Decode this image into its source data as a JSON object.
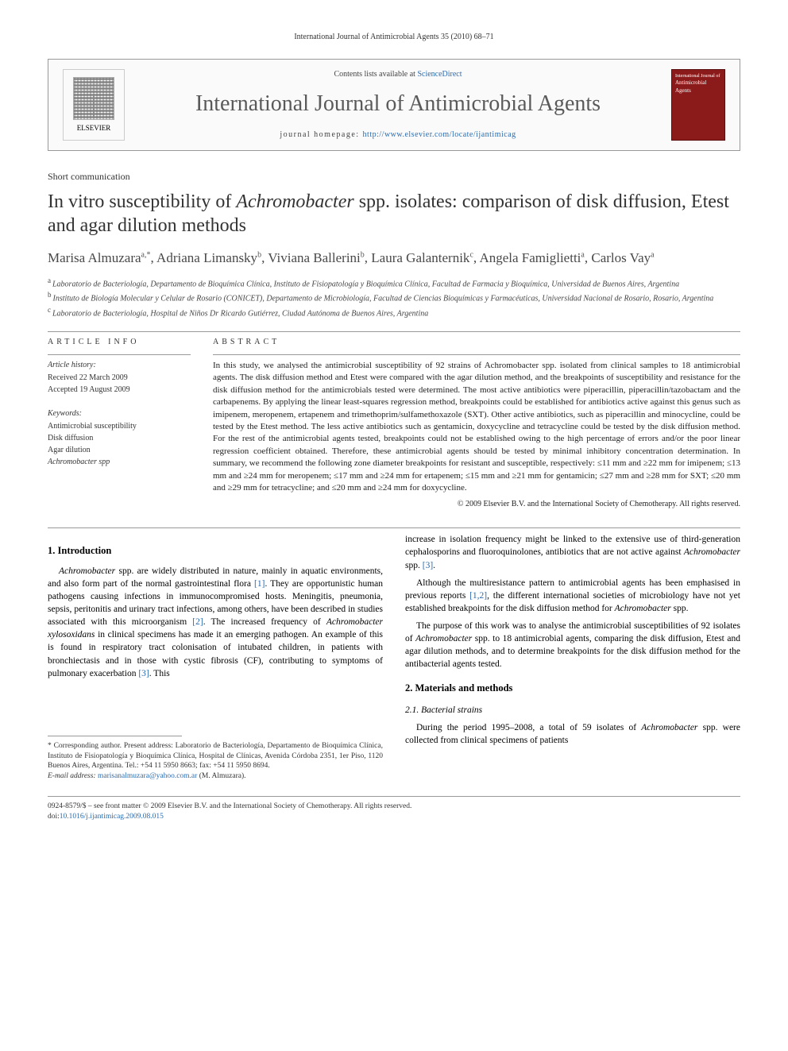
{
  "running_header": "International Journal of Antimicrobial Agents 35 (2010) 68–71",
  "journal_box": {
    "contents_prefix": "Contents lists available at ",
    "contents_link": "ScienceDirect",
    "journal_name": "International Journal of Antimicrobial Agents",
    "homepage_prefix": "journal homepage: ",
    "homepage_url": "http://www.elsevier.com/locate/ijantimicag",
    "publisher_logo_label": "ELSEVIER",
    "cover_text_top": "International Journal of",
    "cover_text_main": "Antimicrobial Agents"
  },
  "article_type": "Short communication",
  "title_html": "In vitro susceptibility of <em>Achromobacter</em> spp. isolates: comparison of disk diffusion, Etest and agar dilution methods",
  "authors_html": "Marisa Almuzara<sup>a,*</sup>, Adriana Limansky<sup>b</sup>, Viviana Ballerini<sup>b</sup>, Laura Galanternik<sup>c</sup>, Angela Famiglietti<sup>a</sup>, Carlos Vay<sup>a</sup>",
  "affiliations": [
    {
      "sup": "a",
      "text": "Laboratorio de Bacteriología, Departamento de Bioquímica Clínica, Instituto de Fisiopatología y Bioquímica Clínica, Facultad de Farmacia y Bioquímica, Universidad de Buenos Aires, Argentina"
    },
    {
      "sup": "b",
      "text": "Instituto de Biología Molecular y Celular de Rosario (CONICET), Departamento de Microbiología, Facultad de Ciencias Bioquímicas y Farmacéuticas, Universidad Nacional de Rosario, Rosario, Argentina"
    },
    {
      "sup": "c",
      "text": "Laboratorio de Bacteriología, Hospital de Niños Dr Ricardo Gutiérrez, Ciudad Autónoma de Buenos Aires, Argentina"
    }
  ],
  "info": {
    "head": "ARTICLE INFO",
    "history_head": "Article history:",
    "received": "Received 22 March 2009",
    "accepted": "Accepted 19 August 2009",
    "kw_head": "Keywords:",
    "keywords": [
      "Antimicrobial susceptibility",
      "Disk diffusion",
      "Agar dilution",
      "Achromobacter spp"
    ]
  },
  "abstract": {
    "head": "ABSTRACT",
    "text": "In this study, we analysed the antimicrobial susceptibility of 92 strains of Achromobacter spp. isolated from clinical samples to 18 antimicrobial agents. The disk diffusion method and Etest were compared with the agar dilution method, and the breakpoints of susceptibility and resistance for the disk diffusion method for the antimicrobials tested were determined. The most active antibiotics were piperacillin, piperacillin/tazobactam and the carbapenems. By applying the linear least-squares regression method, breakpoints could be established for antibiotics active against this genus such as imipenem, meropenem, ertapenem and trimethoprim/sulfamethoxazole (SXT). Other active antibiotics, such as piperacillin and minocycline, could be tested by the Etest method. The less active antibiotics such as gentamicin, doxycycline and tetracycline could be tested by the disk diffusion method. For the rest of the antimicrobial agents tested, breakpoints could not be established owing to the high percentage of errors and/or the poor linear regression coefficient obtained. Therefore, these antimicrobial agents should be tested by minimal inhibitory concentration determination. In summary, we recommend the following zone diameter breakpoints for resistant and susceptible, respectively: ≤11 mm and ≥22 mm for imipenem; ≤13 mm and ≥24 mm for meropenem; ≤17 mm and ≥24 mm for ertapenem; ≤15 mm and ≥21 mm for gentamicin; ≤27 mm and ≥28 mm for SXT; ≤20 mm and ≥29 mm for tetracycline; and ≤20 mm and ≥24 mm for doxycycline.",
    "copyright": "© 2009 Elsevier B.V. and the International Society of Chemotherapy. All rights reserved."
  },
  "body": {
    "h_intro": "1. Introduction",
    "p1_html": "<em>Achromobacter</em> spp. are widely distributed in nature, mainly in aquatic environments, and also form part of the normal gastrointestinal flora <span class=\"ref\">[1]</span>. They are opportunistic human pathogens causing infections in immunocompromised hosts. Meningitis, pneumonia, sepsis, peritonitis and urinary tract infections, among others, have been described in studies associated with this microorganism <span class=\"ref\">[2]</span>. The increased frequency of <em>Achromobacter xylosoxidans</em> in clinical specimens has made it an emerging pathogen. An example of this is found in respiratory tract colonisation of intubated children, in patients with bronchiectasis and in those with cystic fibrosis (CF), contributing to symptoms of pulmonary exacerbation <span class=\"ref\">[3]</span>. This",
    "p2_html": "increase in isolation frequency might be linked to the extensive use of third-generation cephalosporins and fluoroquinolones, antibiotics that are not active against <em>Achromobacter</em> spp. <span class=\"ref\">[3]</span>.",
    "p3_html": "Although the multiresistance pattern to antimicrobial agents has been emphasised in previous reports <span class=\"ref\">[1,2]</span>, the different international societies of microbiology have not yet established breakpoints for the disk diffusion method for <em>Achromobacter</em> spp.",
    "p4_html": "The purpose of this work was to analyse the antimicrobial susceptibilities of 92 isolates of <em>Achromobacter</em> spp. to 18 antimicrobial agents, comparing the disk diffusion, Etest and agar dilution methods, and to determine breakpoints for the disk diffusion method for the antibacterial agents tested.",
    "h_methods": "2. Materials and methods",
    "h_strains": "2.1. Bacterial strains",
    "p5_html": "During the period 1995–2008, a total of 59 isolates of <em>Achromobacter</em> spp. were collected from clinical specimens of patients"
  },
  "footnote": {
    "corr": "* Corresponding author. Present address: Laboratorio de Bacteriología, Departamento de Bioquímica Clínica, Instituto de Fisiopatología y Bioquímica Clínica, Hospital de Clínicas, Avenida Córdoba 2351, 1er Piso, 1120 Buenos Aires, Argentina. Tel.: +54 11 5950 8663; fax: +54 11 5950 8694.",
    "email_label": "E-mail address: ",
    "email": "marisanalmuzara@yahoo.com.ar",
    "email_suffix": " (M. Almuzara)."
  },
  "footer": {
    "line1": "0924-8579/$ – see front matter © 2009 Elsevier B.V. and the International Society of Chemotherapy. All rights reserved.",
    "doi_label": "doi:",
    "doi": "10.1016/j.ijantimicag.2009.08.015"
  },
  "colors": {
    "link": "#2b6cb0",
    "cover_bg": "#8b1a1a",
    "rule": "#999999"
  }
}
